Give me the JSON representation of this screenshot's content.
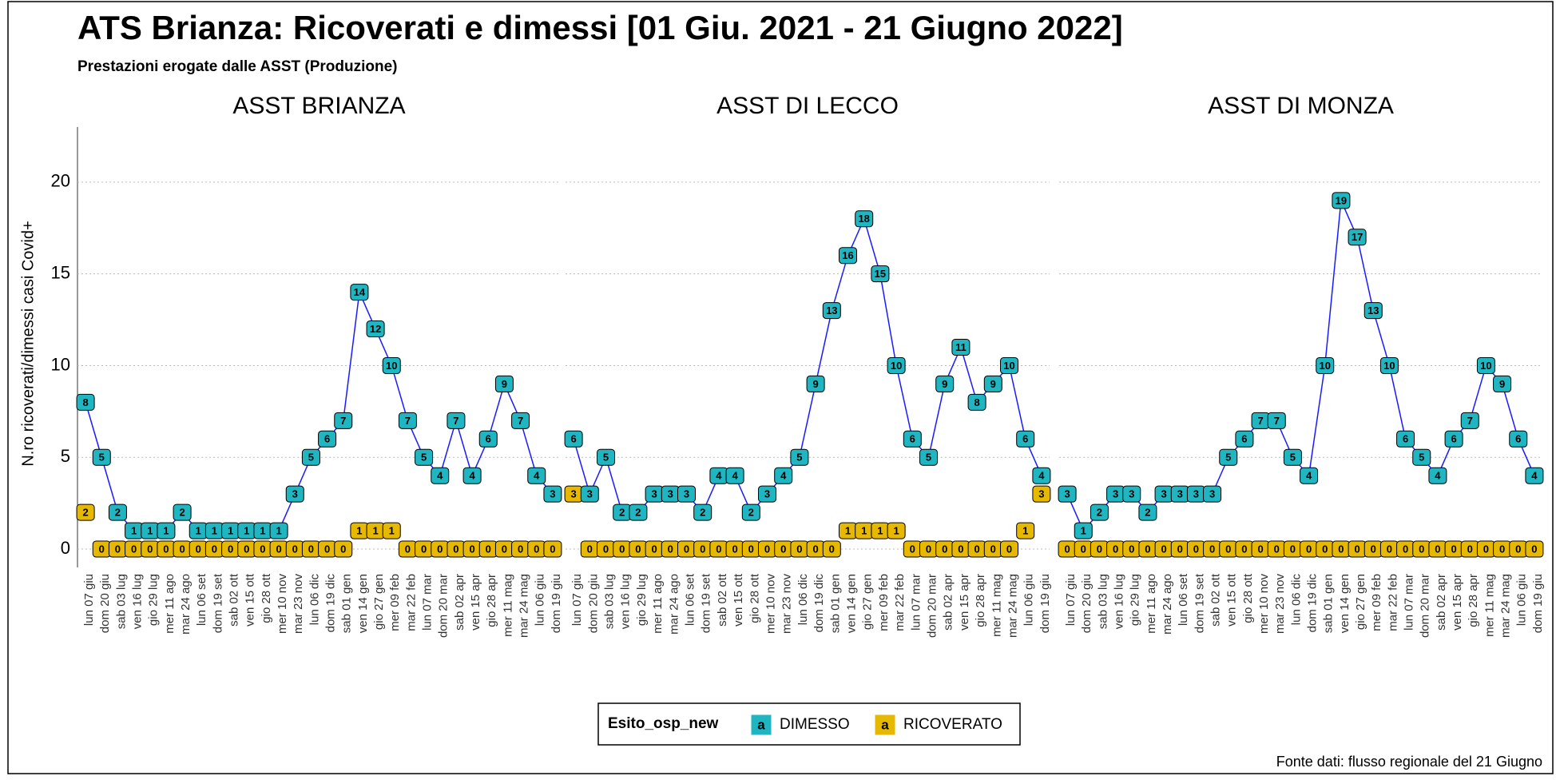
{
  "chart_data": {
    "type": "line",
    "title": "ATS Brianza: Ricoverati e dimessi [01 Giu. 2021 - 21 Giugno 2022]",
    "subtitle": "Prestazioni erogate dalle ASST (Produzione)",
    "y_label": "N.ro ricoverati/dimessi casi Covid+",
    "caption": "Fonte dati: flusso regionale del 21 Giugno",
    "legend_title": "Esito_osp_new",
    "legend_key_text": "a",
    "legend_position": "bottom",
    "grid": true,
    "ylim": [
      -1,
      23
    ],
    "yticks": [
      0,
      5,
      10,
      15,
      20
    ],
    "categories": [
      "lun 07 giu",
      "dom 20 giu",
      "sab 03 lug",
      "ven 16 lug",
      "gio 29 lug",
      "mer 11 ago",
      "mar 24 ago",
      "lun 06 set",
      "dom 19 set",
      "sab 02 ott",
      "ven 15 ott",
      "gio 28 ott",
      "mer 10 nov",
      "mar 23 nov",
      "lun 06 dic",
      "dom 19 dic",
      "sab 01 gen",
      "ven 14 gen",
      "gio 27 gen",
      "mer 09 feb",
      "mar 22 feb",
      "lun 07 mar",
      "dom 20 mar",
      "sab 02 apr",
      "ven 15 apr",
      "gio 28 apr",
      "mer 11 mag",
      "mar 24 mag",
      "lun 06 giu",
      "dom 19 giu"
    ],
    "series_names": [
      "DIMESSO",
      "RICOVERATO"
    ],
    "series_colors": [
      "#1fb5c1",
      "#e6b800"
    ],
    "line_color": "#1a1aff",
    "facets": [
      {
        "title": "ASST BRIANZA",
        "series": [
          {
            "name": "DIMESSO",
            "values": [
              8,
              5,
              2,
              1,
              1,
              1,
              2,
              1,
              1,
              1,
              1,
              1,
              1,
              3,
              5,
              6,
              7,
              14,
              12,
              10,
              7,
              5,
              4,
              7,
              4,
              6,
              9,
              7,
              4,
              3
            ]
          },
          {
            "name": "RICOVERATO",
            "values": [
              2,
              0,
              0,
              0,
              0,
              0,
              0,
              0,
              0,
              0,
              0,
              0,
              0,
              0,
              0,
              0,
              0,
              1,
              1,
              1,
              0,
              0,
              0,
              0,
              0,
              0,
              0,
              0,
              0,
              0
            ]
          }
        ]
      },
      {
        "title": "ASST DI LECCO",
        "series": [
          {
            "name": "DIMESSO",
            "values": [
              6,
              3,
              5,
              2,
              2,
              3,
              3,
              3,
              2,
              4,
              4,
              2,
              3,
              4,
              5,
              9,
              13,
              16,
              18,
              15,
              10,
              6,
              5,
              9,
              11,
              8,
              9,
              10,
              6,
              4
            ]
          },
          {
            "name": "RICOVERATO",
            "values": [
              3,
              0,
              0,
              0,
              0,
              0,
              0,
              0,
              0,
              0,
              0,
              0,
              0,
              0,
              0,
              0,
              0,
              1,
              1,
              1,
              1,
              0,
              0,
              0,
              0,
              0,
              0,
              0,
              1,
              3
            ]
          }
        ]
      },
      {
        "title": "ASST DI MONZA",
        "series": [
          {
            "name": "DIMESSO",
            "values": [
              3,
              1,
              2,
              3,
              3,
              2,
              3,
              3,
              3,
              3,
              5,
              6,
              7,
              7,
              5,
              4,
              10,
              19,
              17,
              13,
              10,
              6,
              5,
              4,
              6,
              7,
              10,
              9,
              6,
              4
            ]
          },
          {
            "name": "RICOVERATO",
            "values": [
              0,
              0,
              0,
              0,
              0,
              0,
              0,
              0,
              0,
              0,
              0,
              0,
              0,
              0,
              0,
              0,
              0,
              0,
              0,
              0,
              0,
              0,
              0,
              0,
              0,
              0,
              0,
              0,
              0,
              0
            ]
          }
        ]
      }
    ]
  }
}
